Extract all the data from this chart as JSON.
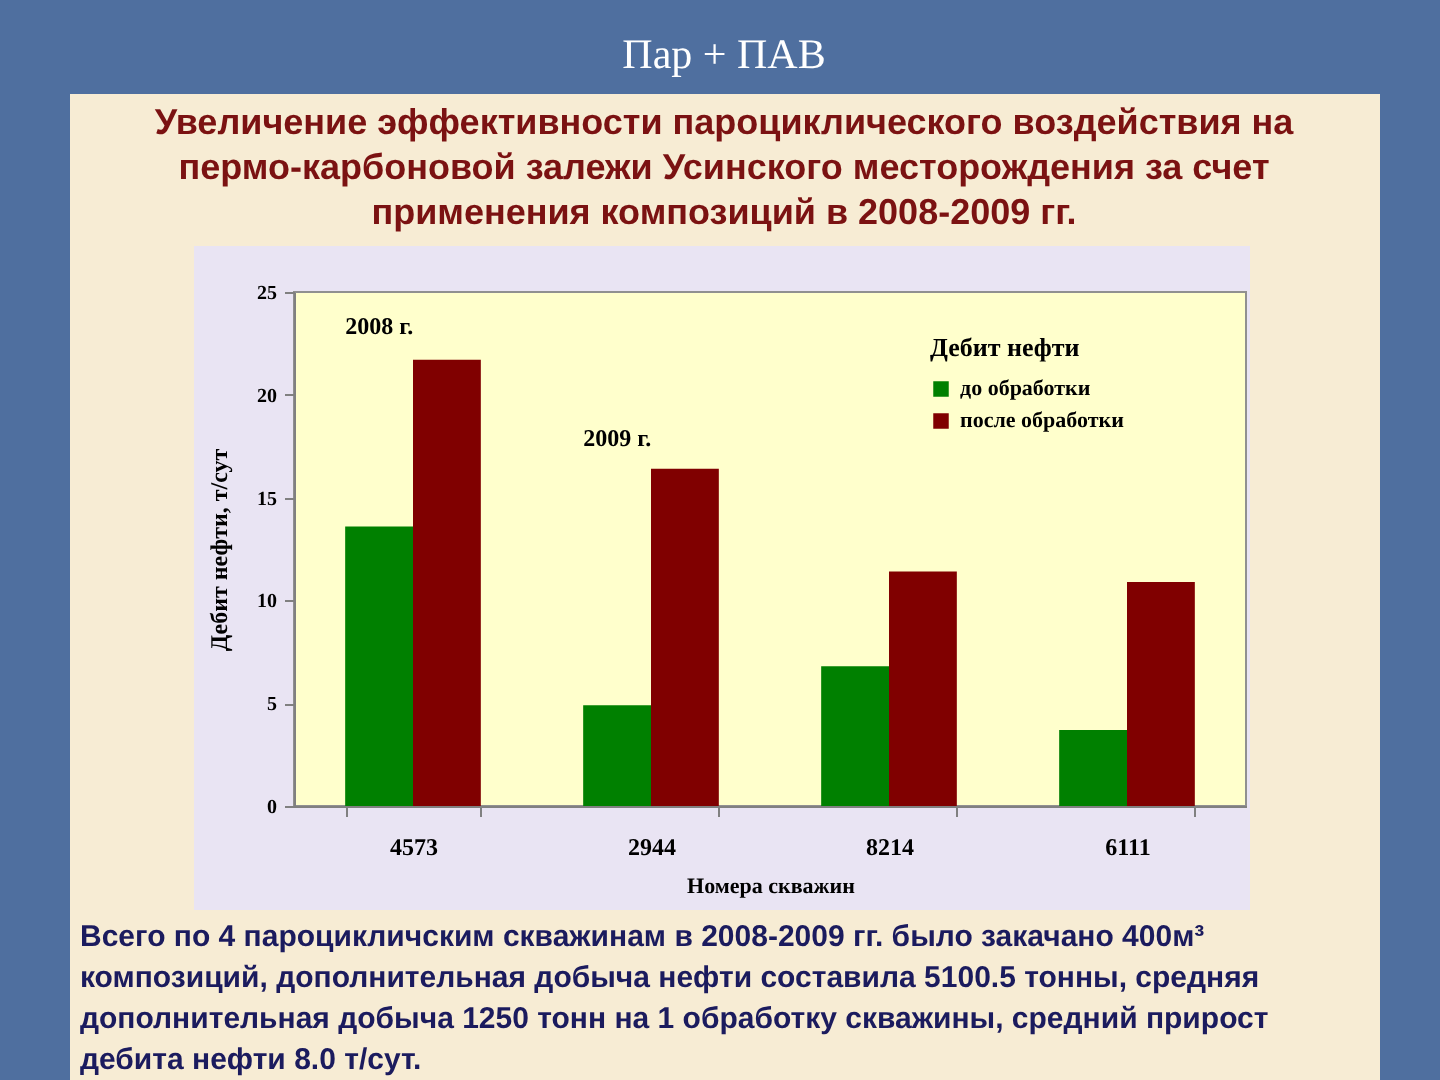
{
  "chart_data": {
    "type": "bar",
    "title": "Пар + ПАВ",
    "subtitle": "Увеличение эффективности пароциклического воздействия на пермо-карбоновой залежи Усинского месторождения за счет применения композиций в 2008-2009 гг.",
    "xlabel": "Номера скважин",
    "ylabel": "Дебит нефти, т/сут",
    "legend_title": "Дебит нефти",
    "categories": [
      "4573",
      "2944",
      "8214",
      "6111"
    ],
    "series": [
      {
        "name": "до обработки",
        "color": "#008000",
        "values": [
          13.6,
          4.9,
          6.8,
          3.7
        ]
      },
      {
        "name": "после обработки",
        "color": "#800000",
        "values": [
          21.7,
          16.4,
          11.4,
          10.9
        ]
      }
    ],
    "ylim": [
      0,
      25
    ],
    "yticks": [
      0,
      5,
      10,
      15,
      20,
      25
    ],
    "legend": "top right",
    "annotations": [
      "2008 г.",
      "2009 г.",
      "Всего по 4 пароцикличским скважинам в 2008-2009 гг. было закачано 400м³ композиций, дополнительная добыча нефти составила 5100.5 тонны, средняя дополнительная добыча 1250 тонн на 1 обработку скважины, средний прирост дебита нефти 8.0 т/сут."
    ]
  }
}
